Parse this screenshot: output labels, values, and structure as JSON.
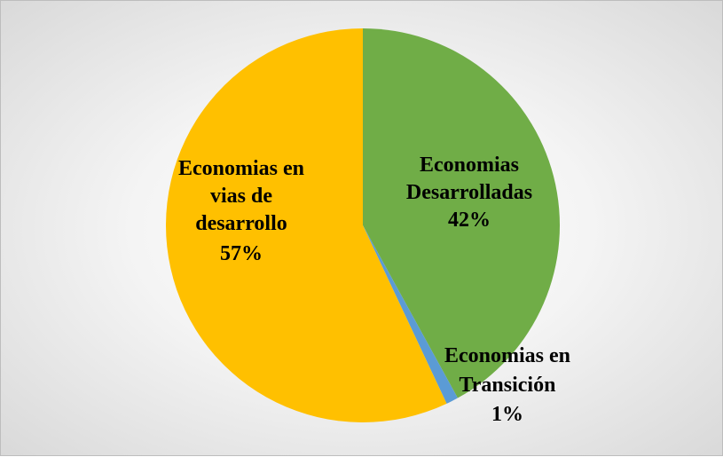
{
  "chart_data": {
    "type": "pie",
    "title": "",
    "slices": [
      {
        "label_lines": [
          "Economias",
          "Desarrolladas"
        ],
        "percent_label": "42%",
        "value": 42,
        "color": "#70ad47"
      },
      {
        "label_lines": [
          "Economias en",
          "Transición"
        ],
        "percent_label": "1%",
        "value": 1,
        "color": "#5b9bd5"
      },
      {
        "label_lines": [
          "Economias en",
          "vias de",
          "desarrollo"
        ],
        "percent_label": "57%",
        "value": 57,
        "color": "#ffc000"
      }
    ],
    "legend": "none"
  }
}
